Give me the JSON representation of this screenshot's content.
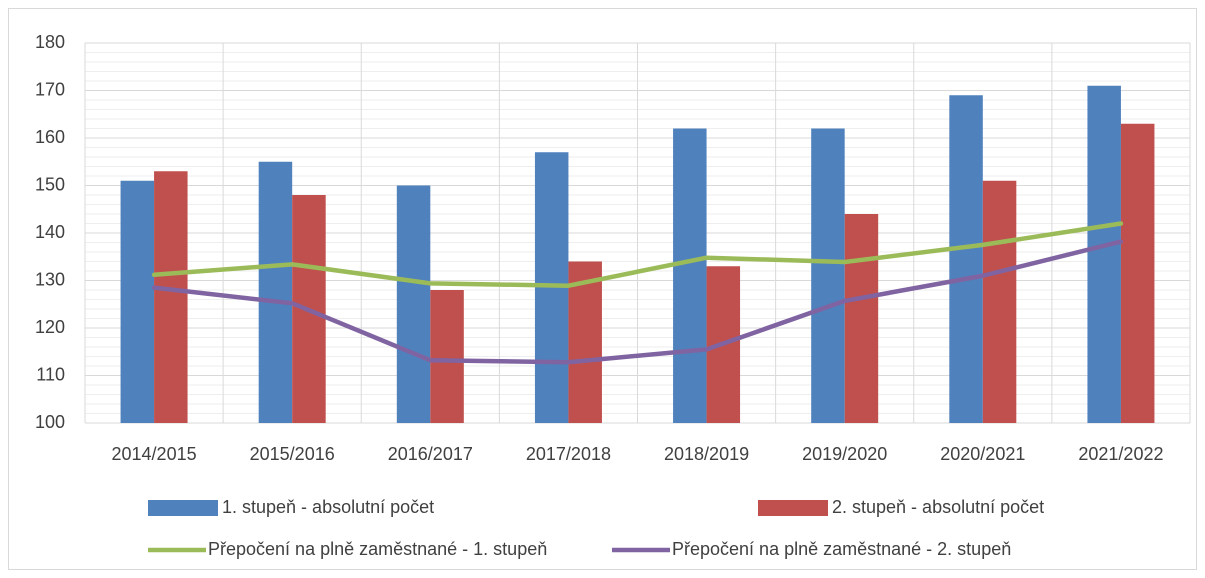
{
  "chart_data": {
    "type": "bar",
    "categories": [
      "2014/2015",
      "2015/2016",
      "2016/2017",
      "2017/2018",
      "2018/2019",
      "2019/2020",
      "2020/2021",
      "2021/2022"
    ],
    "series": [
      {
        "name": "1. stupeň - absolutní počet",
        "type": "bar",
        "color": "#4f81bd",
        "values": [
          151,
          155,
          150,
          157,
          162,
          162,
          169,
          171
        ]
      },
      {
        "name": "2. stupeň - absolutní počet",
        "type": "bar",
        "color": "#c0504d",
        "values": [
          153,
          148,
          128,
          134,
          133,
          144,
          151,
          163
        ]
      },
      {
        "name": "Přepočení na plně zaměstnané - 1. stupeň",
        "type": "line",
        "color": "#9bbb59",
        "values": [
          131.2,
          133.4,
          129.4,
          128.9,
          134.8,
          133.9,
          137.5,
          142
        ]
      },
      {
        "name": "Přepočení na plně zaměstnané - 2. stupeň",
        "type": "line",
        "color": "#8064a2",
        "values": [
          128.5,
          125.2,
          113.2,
          112.8,
          115.5,
          125.7,
          131,
          138.2
        ]
      }
    ],
    "ylim": [
      100,
      180
    ],
    "yticks": [
      100,
      110,
      120,
      130,
      140,
      150,
      160,
      170,
      180
    ],
    "grid": true,
    "legend": "bottom"
  }
}
